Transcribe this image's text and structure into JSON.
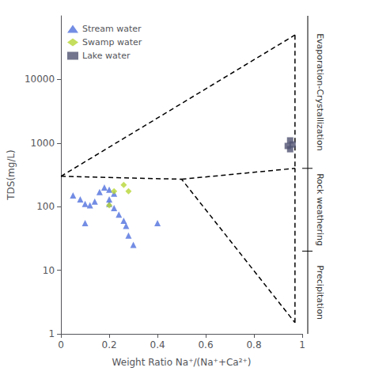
{
  "chart_data": {
    "type": "scatter",
    "xlabel": "Weight Ratio Na⁺/(Na⁺+Ca²⁺)",
    "ylabel": "TDS(mg/L)",
    "log": "y",
    "xlim": [
      0,
      1.0
    ],
    "ylim": [
      1,
      100000
    ],
    "xticks": [
      0,
      0.2,
      0.4,
      0.6,
      0.8,
      1.0
    ],
    "yticks": [
      1,
      10,
      100,
      1000,
      10000
    ],
    "grid": false,
    "legend": "upper left",
    "series": [
      {
        "type": "line",
        "color": "#000000",
        "line_style": "dashed",
        "values": [
          [
            0.0,
            300
          ],
          [
            0.97,
            50000
          ]
        ]
      },
      {
        "type": "line",
        "color": "#000000",
        "line_style": "dashed",
        "values": [
          [
            0.0,
            300
          ],
          [
            0.5,
            270
          ],
          [
            0.97,
            1.5
          ]
        ]
      },
      {
        "type": "line",
        "color": "#000000",
        "line_style": "dashed",
        "values": [
          [
            0.5,
            270
          ],
          [
            0.97,
            400
          ]
        ]
      },
      {
        "type": "line",
        "color": "#000000",
        "line_style": "dashed",
        "values": [
          [
            0.97,
            50000
          ],
          [
            0.97,
            400
          ]
        ]
      },
      {
        "type": "line",
        "color": "#000000",
        "line_style": "dashed",
        "values": [
          [
            0.97,
            1.5
          ],
          [
            0.97,
            400
          ]
        ]
      },
      {
        "name": "Stream water",
        "type": "scatter",
        "marker": "triangle",
        "values": [
          [
            0.05,
            150
          ],
          [
            0.08,
            130
          ],
          [
            0.1,
            110
          ],
          [
            0.12,
            105
          ],
          [
            0.14,
            120
          ],
          [
            0.16,
            170
          ],
          [
            0.18,
            200
          ],
          [
            0.2,
            185
          ],
          [
            0.2,
            110
          ],
          [
            0.22,
            95
          ],
          [
            0.22,
            160
          ],
          [
            0.24,
            75
          ],
          [
            0.26,
            60
          ],
          [
            0.27,
            50
          ],
          [
            0.28,
            35
          ],
          [
            0.3,
            25
          ],
          [
            0.2,
            130
          ],
          [
            0.4,
            55
          ],
          [
            0.1,
            55
          ]
        ]
      },
      {
        "name": "Swamp water",
        "type": "scatter",
        "marker": "diamond",
        "values": [
          [
            0.2,
            105
          ],
          [
            0.22,
            175
          ],
          [
            0.26,
            220
          ],
          [
            0.28,
            175
          ]
        ]
      },
      {
        "name": "Lake water",
        "type": "scatter",
        "marker": "rect",
        "values": [
          [
            0.94,
            900
          ],
          [
            0.95,
            1100
          ],
          [
            0.96,
            950
          ],
          [
            0.95,
            800
          ]
        ]
      }
    ],
    "zone_boundaries": [
      400,
      20
    ],
    "zone_labels": [
      "Evaporation-Crystallization",
      "Rock weathering",
      "Precipitation"
    ]
  }
}
